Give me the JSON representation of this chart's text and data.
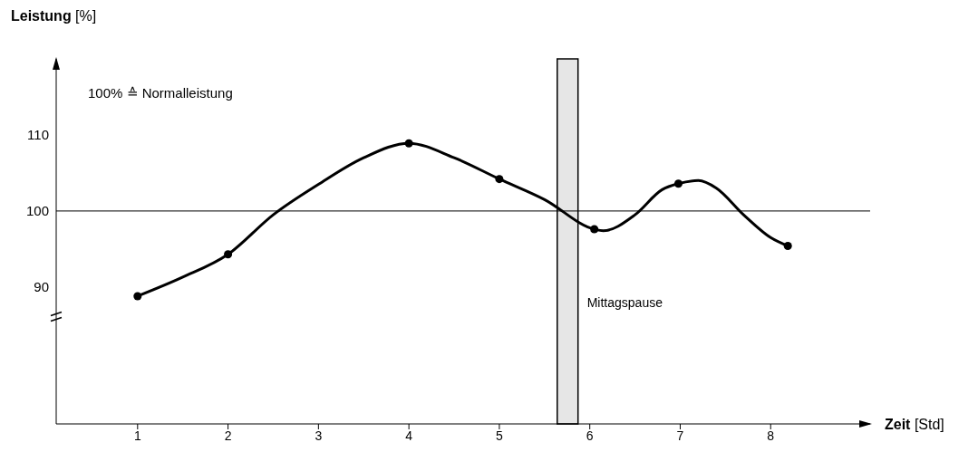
{
  "chart_data": {
    "type": "line",
    "xlabel": "Zeit [Std]",
    "ylabel": "Leistung [%]",
    "annotations": [
      "100% ≙ Normalleistung"
    ],
    "xlim": [
      0.1,
      9.1
    ],
    "xticks": [
      1,
      2,
      3,
      4,
      5,
      6,
      7,
      8
    ],
    "ylim": [
      72,
      120
    ],
    "yticks": [
      90,
      100,
      110
    ],
    "grid": false,
    "ref_lines": [
      {
        "axis": "y",
        "value": 100,
        "color": "#000000"
      }
    ],
    "bands": [
      {
        "axis": "x",
        "from": 5.64,
        "to": 5.87,
        "label": "Mittagspause",
        "color": "#e6e6e6"
      }
    ],
    "series": [
      {
        "color": "#000000",
        "marker": "none",
        "x": [
          1,
          1.5,
          2,
          2.5,
          3,
          3.5,
          4,
          4.5,
          5,
          5.5,
          6.05,
          6.15,
          6.5,
          6.8,
          6.98,
          7.2,
          7.4,
          7.7,
          8,
          8.19
        ],
        "values": [
          88.8,
          91.3,
          94.3,
          99.5,
          103.5,
          107,
          108.9,
          107,
          104.2,
          101.5,
          97.6,
          97.4,
          99.5,
          102.8,
          103.6,
          104,
          103,
          99.5,
          96.5,
          95.4
        ]
      },
      {
        "type": "scatter",
        "color": "#000000",
        "marker": "circle",
        "x": [
          1,
          2,
          4,
          5,
          6.05,
          6.98,
          8.19
        ],
        "values": [
          88.8,
          94.3,
          108.9,
          104.2,
          97.6,
          103.6,
          95.4
        ]
      }
    ]
  }
}
